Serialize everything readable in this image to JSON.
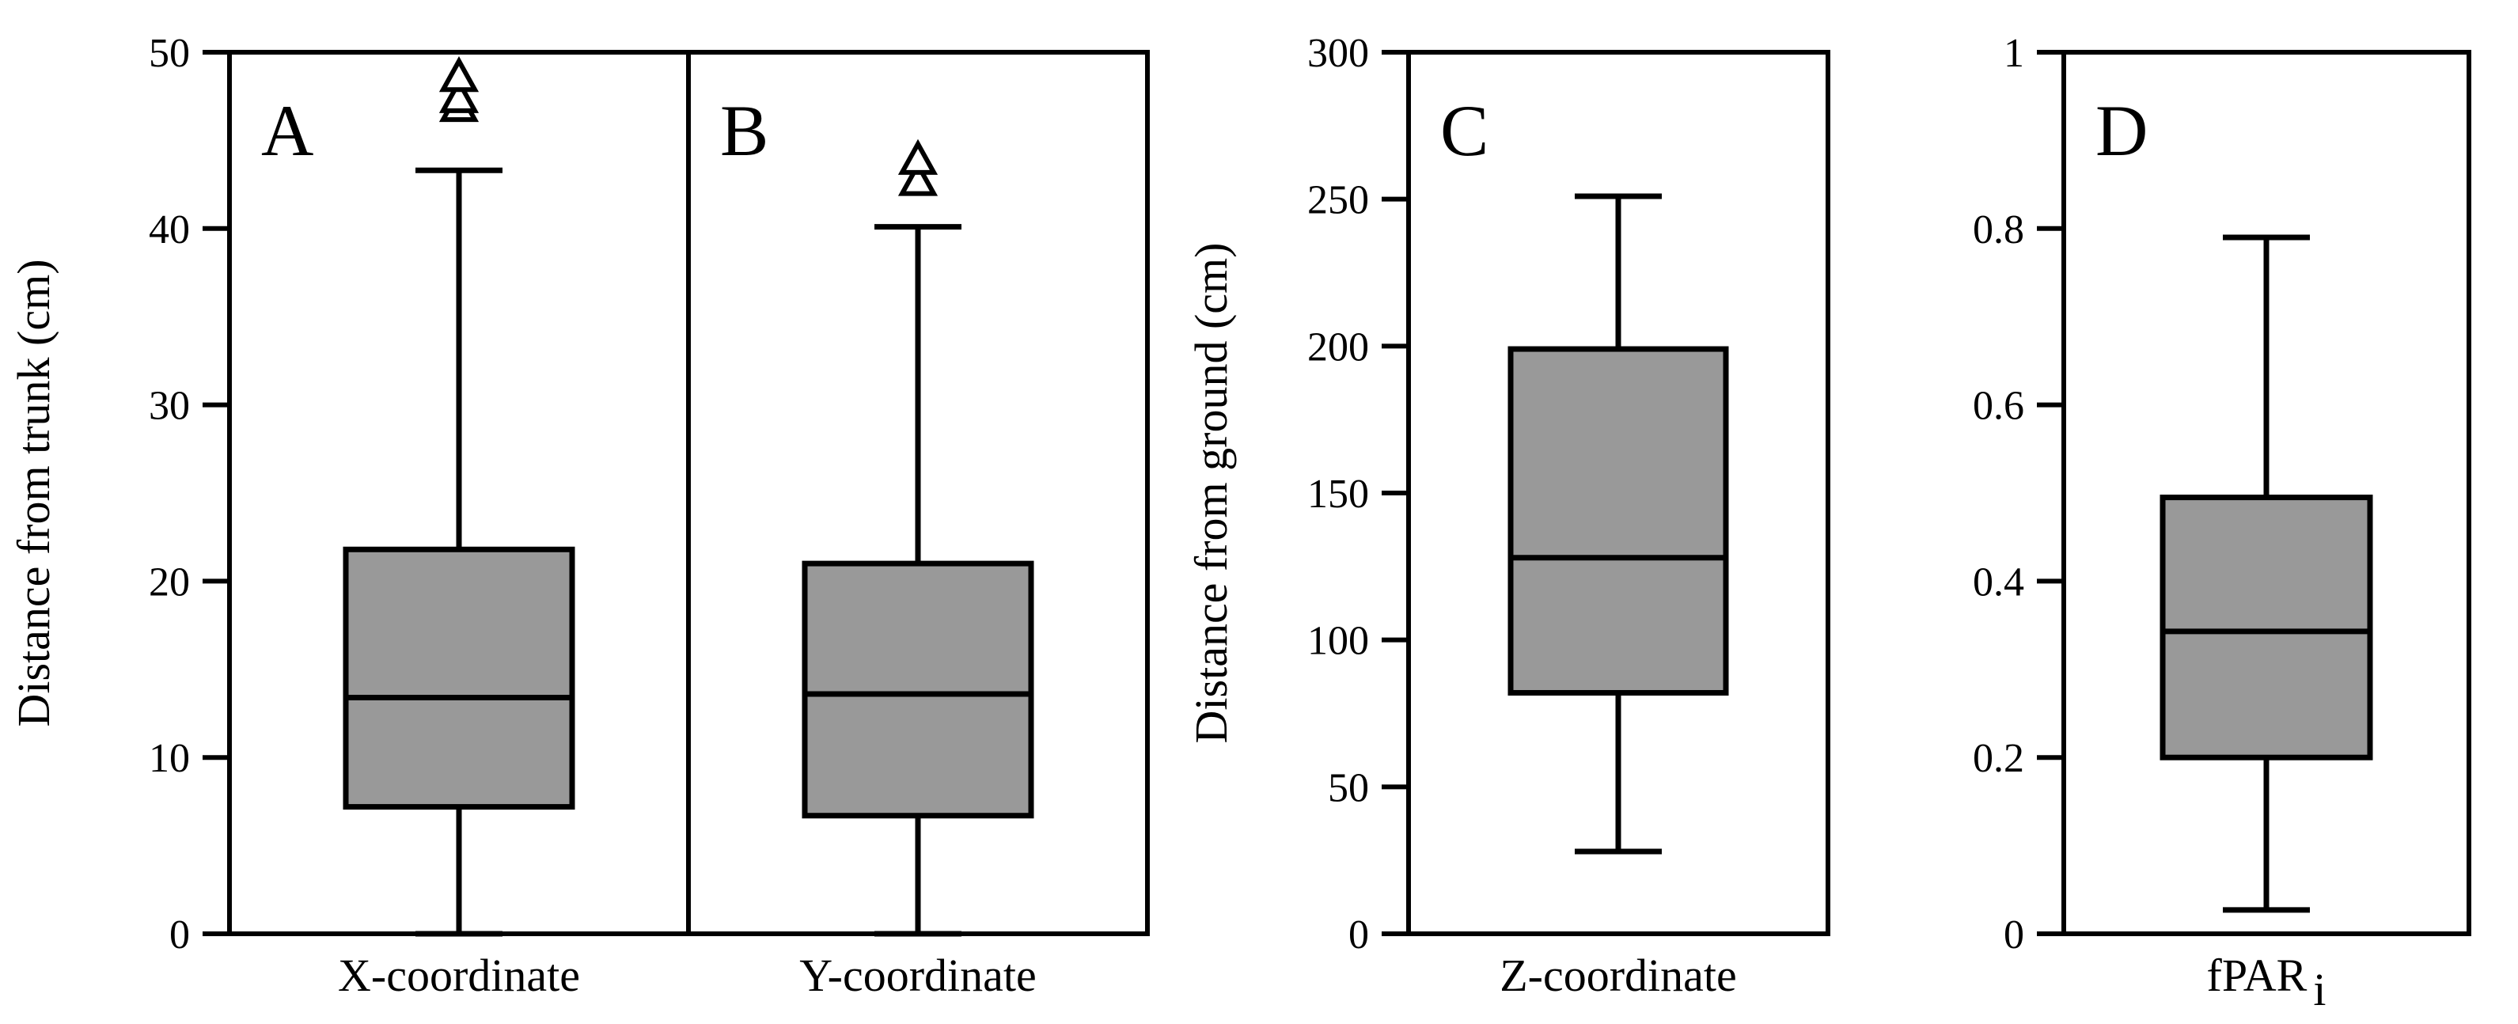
{
  "chart_data": [
    {
      "type": "box",
      "panel_letter": "A",
      "shared_y_axis_with": "B",
      "ylabel": "Distance from trunk (cm)",
      "ylim": [
        0,
        50
      ],
      "yticks": [
        "0",
        "10",
        "20",
        "30",
        "40",
        "50"
      ],
      "category": "X-coordinate",
      "box": {
        "whisker_low": 0,
        "q1": 7.2,
        "median": 13.4,
        "q3": 21.8,
        "whisker_high": 43.3
      },
      "outliers": [
        46.9,
        47.4,
        48.6
      ],
      "box_color": "#999999"
    },
    {
      "type": "box",
      "panel_letter": "B",
      "ylabel": "Distance from trunk (cm)",
      "ylim": [
        0,
        50
      ],
      "category": "Y-coordinate",
      "box": {
        "whisker_low": 0,
        "q1": 6.7,
        "median": 13.6,
        "q3": 21.0,
        "whisker_high": 40.1
      },
      "outliers": [
        42.7,
        43.9
      ],
      "box_color": "#999999"
    },
    {
      "type": "box",
      "panel_letter": "C",
      "ylabel": "Distance from ground (cm)",
      "ylim": [
        0,
        300
      ],
      "yticks": [
        "0",
        "50",
        "100",
        "150",
        "200",
        "250",
        "300"
      ],
      "category": "Z-coordinate",
      "box": {
        "whisker_low": 28,
        "q1": 82,
        "median": 128,
        "q3": 199,
        "whisker_high": 251
      },
      "outliers": [],
      "box_color": "#999999"
    },
    {
      "type": "box",
      "panel_letter": "D",
      "ylabel": "",
      "ylim": [
        0,
        1
      ],
      "yticks": [
        "0",
        "0.2",
        "0.4",
        "0.6",
        "0.8",
        "1"
      ],
      "category": "fPAR",
      "category_subscript": "i",
      "box": {
        "whisker_low": 0.027,
        "q1": 0.2,
        "median": 0.343,
        "q3": 0.495,
        "whisker_high": 0.79
      },
      "outliers": [],
      "box_color": "#999999"
    }
  ]
}
